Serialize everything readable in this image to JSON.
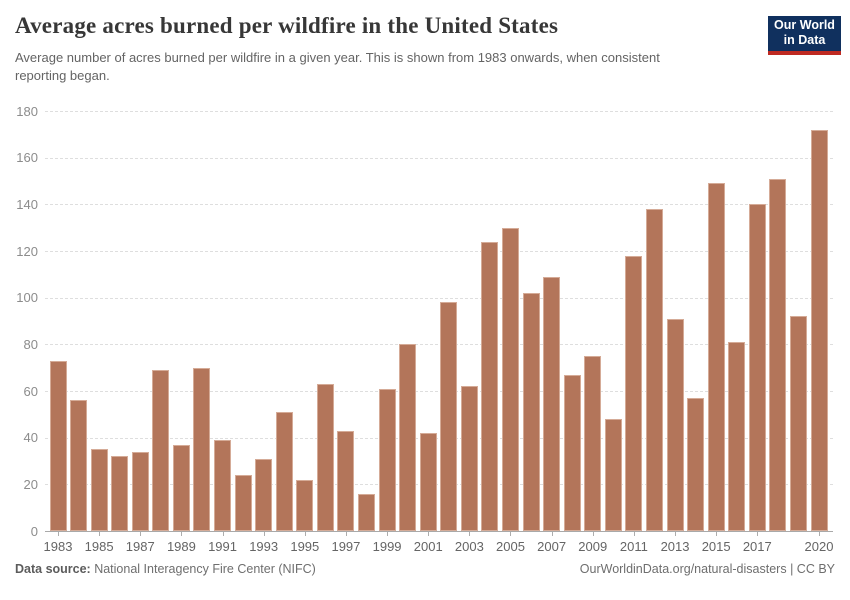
{
  "header": {
    "title": "Average acres burned per wildfire in the United States",
    "subtitle": "Average number of acres burned per wildfire in a given year. This is shown from 1983 onwards, when consistent reporting began.",
    "logo": {
      "line1": "Our World",
      "line2": "in Data",
      "bg_color": "#10305e",
      "accent_color": "#bf2a22"
    }
  },
  "chart_data": {
    "type": "bar",
    "title": "Average acres burned per wildfire in the United States",
    "subtitle": "Average number of acres burned per wildfire in a given year. This is shown from 1983 onwards, when consistent reporting began.",
    "categories": [
      1983,
      1984,
      1985,
      1986,
      1987,
      1988,
      1989,
      1990,
      1991,
      1992,
      1993,
      1994,
      1995,
      1996,
      1997,
      1998,
      1999,
      2000,
      2001,
      2002,
      2003,
      2004,
      2005,
      2006,
      2007,
      2008,
      2009,
      2010,
      2011,
      2012,
      2013,
      2014,
      2015,
      2016,
      2017,
      2018,
      2019,
      2020
    ],
    "values": [
      73,
      56,
      35,
      32,
      34,
      69,
      37,
      70,
      39,
      24,
      31,
      51,
      22,
      63,
      43,
      16,
      61,
      80,
      42,
      98,
      62,
      124,
      130,
      102,
      109,
      67,
      75,
      48,
      118,
      138,
      91,
      57,
      149,
      81,
      140,
      151,
      92,
      172
    ],
    "xlabel": "",
    "ylabel": "",
    "ylim": [
      0,
      180
    ],
    "yticks": [
      0,
      20,
      40,
      60,
      80,
      100,
      120,
      140,
      160,
      180
    ],
    "xtick_labels": [
      "1983",
      "1985",
      "1987",
      "1989",
      "1991",
      "1993",
      "1995",
      "1997",
      "1999",
      "2001",
      "2003",
      "2005",
      "2007",
      "2009",
      "2011",
      "2013",
      "2015",
      "2017",
      "2020"
    ],
    "bar_color": "#b3755a",
    "grid": true,
    "legend": "none"
  },
  "footer": {
    "source_label": "Data source:",
    "source_text": " National Interagency Fire Center (NIFC)",
    "right_link": "OurWorldinData.org/natural-disasters",
    "right_suffix": " | CC BY"
  }
}
